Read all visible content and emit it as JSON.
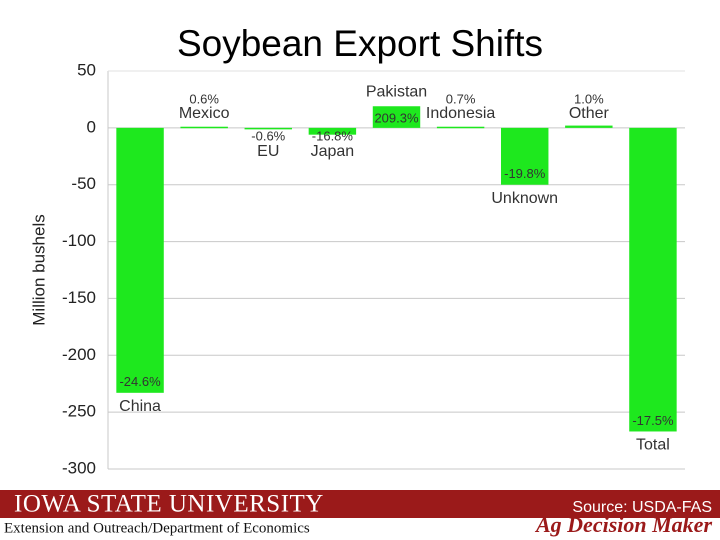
{
  "chart_data": {
    "type": "bar",
    "title": "Soybean Export Shifts",
    "y_label": "Million bushels",
    "categories": [
      "China",
      "Mexico",
      "EU",
      "Japan",
      "Pakistan",
      "Indonesia",
      "Unknown",
      "Other",
      "Total"
    ],
    "values": [
      -233,
      1,
      -1,
      -6,
      19,
      1,
      -50,
      2,
      -267
    ],
    "annotations": [
      "-24.6%",
      "0.6%",
      "-0.6%",
      "-16.8%",
      "209.3%",
      "0.7%",
      "-19.8%",
      "1.0%",
      "-17.5%"
    ],
    "color": "#1ee81e",
    "ylim": [
      -300,
      50
    ],
    "yticks": [
      -300,
      -250,
      -200,
      -150,
      -100,
      -50,
      0,
      50
    ],
    "grid": true
  },
  "footer": {
    "university": "IOWA STATE UNIVERSITY",
    "department": "Extension and Outreach/Department of Economics",
    "source": "Source: USDA-FAS",
    "brand": "Ag Decision Maker"
  }
}
